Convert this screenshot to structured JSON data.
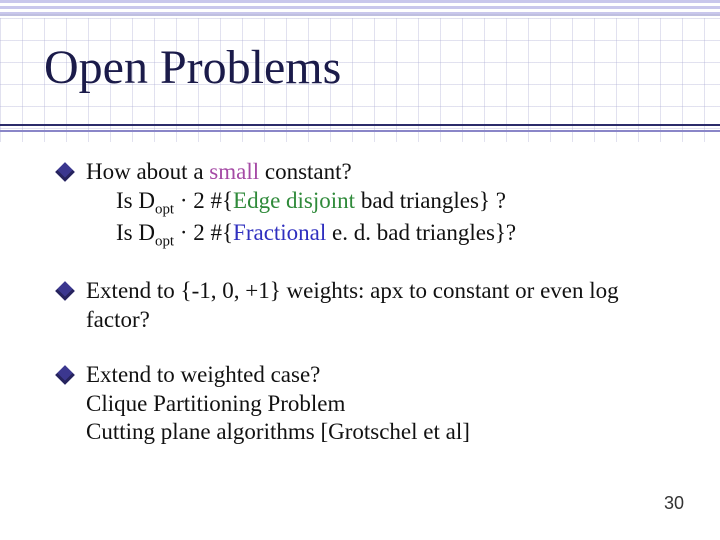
{
  "title": "Open Problems",
  "theme": {
    "title_color": "#1b1b4a",
    "title_fontsize": 48,
    "body_fontsize": 23,
    "bullet_color": "#3b378f",
    "small_color": "#a54aa5",
    "edge_color": "#2f8a3a",
    "frac_color": "#2f2fbf",
    "rule_upper": "#2b2b6a",
    "rule_lower": "#8a86c8",
    "background": "#ffffff",
    "font_family": "Comic Sans MS"
  },
  "bullets": [
    {
      "lead": "How about a ",
      "small_word": "small",
      "lead_tail": " constant?",
      "line2": {
        "pre": "Is D",
        "sub": "opt",
        "mid": " · 2 #{",
        "colored": "Edge disjoint",
        "tail": " bad triangles} ?"
      },
      "line3": {
        "pre": "Is D",
        "sub": "opt",
        "mid": " · 2 #{",
        "colored": "Fractional",
        "tail": " e. d. bad triangles}?"
      }
    },
    {
      "text": "Extend to {-1, 0, +1} weights: apx to constant or even log factor?"
    },
    {
      "text": "Extend to weighted case?",
      "sub1": "Clique Partitioning Problem",
      "sub2": "Cutting plane algorithms [Grotschel et al]"
    }
  ],
  "page_number": "30"
}
